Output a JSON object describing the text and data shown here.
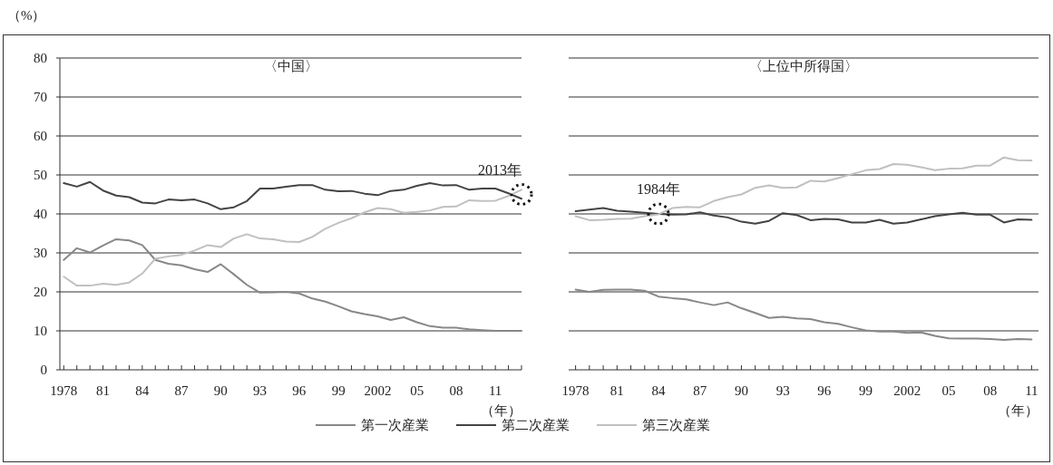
{
  "chart_data": [
    {
      "type": "line",
      "title": "〈中国〉",
      "ylabel": "（%）",
      "xlabel": "（年）",
      "x": [
        1978,
        1979,
        1980,
        1981,
        1982,
        1983,
        1984,
        1985,
        1986,
        1987,
        1988,
        1989,
        1990,
        1991,
        1992,
        1993,
        1994,
        1995,
        1996,
        1997,
        1998,
        1999,
        2000,
        2001,
        2002,
        2003,
        2004,
        2005,
        2006,
        2007,
        2008,
        2009,
        2010,
        2011,
        2012,
        2013
      ],
      "series": [
        {
          "name": "第一次産業",
          "color": "#888888",
          "values": [
            28.2,
            31.2,
            30.1,
            31.9,
            33.5,
            33.2,
            32.0,
            28.2,
            27.2,
            26.8,
            25.8,
            25.1,
            27.1,
            24.5,
            21.8,
            19.8,
            19.9,
            20.0,
            19.6,
            18.3,
            17.5,
            16.3,
            15.0,
            14.3,
            13.7,
            12.8,
            13.5,
            12.2,
            11.2,
            10.8,
            10.8,
            10.4,
            10.2,
            10.0,
            10.0,
            10.0
          ]
        },
        {
          "name": "第二次産業",
          "color": "#444444",
          "values": [
            47.9,
            47.0,
            48.2,
            46.0,
            44.7,
            44.3,
            42.9,
            42.7,
            43.7,
            43.5,
            43.7,
            42.7,
            41.2,
            41.7,
            43.3,
            46.5,
            46.5,
            47.0,
            47.4,
            47.4,
            46.2,
            45.8,
            45.9,
            45.2,
            44.8,
            45.9,
            46.2,
            47.2,
            47.9,
            47.3,
            47.4,
            46.2,
            46.5,
            46.5,
            45.3,
            43.9
          ]
        },
        {
          "name": "第三次産業",
          "color": "#c0c0c0",
          "values": [
            23.9,
            21.6,
            21.6,
            22.1,
            21.8,
            22.4,
            24.7,
            28.5,
            29.1,
            29.5,
            30.6,
            32.0,
            31.5,
            33.7,
            34.8,
            33.7,
            33.5,
            32.9,
            32.8,
            34.1,
            36.2,
            37.7,
            38.9,
            40.4,
            41.5,
            41.2,
            40.3,
            40.5,
            40.9,
            41.8,
            41.9,
            43.5,
            43.3,
            43.4,
            44.6,
            46.2
          ]
        }
      ],
      "xlim": [
        1977.7,
        2013
      ],
      "xticks": [
        {
          "value": 1978,
          "label": "1978"
        },
        {
          "value": 1979,
          "label": null
        },
        {
          "value": 1980,
          "label": null
        },
        {
          "value": 1981,
          "label": "81"
        },
        {
          "value": 1982,
          "label": null
        },
        {
          "value": 1983,
          "label": null
        },
        {
          "value": 1984,
          "label": "84"
        },
        {
          "value": 1985,
          "label": null
        },
        {
          "value": 1986,
          "label": null
        },
        {
          "value": 1987,
          "label": "87"
        },
        {
          "value": 1988,
          "label": null
        },
        {
          "value": 1989,
          "label": null
        },
        {
          "value": 1990,
          "label": "90"
        },
        {
          "value": 1991,
          "label": null
        },
        {
          "value": 1992,
          "label": null
        },
        {
          "value": 1993,
          "label": "93"
        },
        {
          "value": 1994,
          "label": null
        },
        {
          "value": 1995,
          "label": null
        },
        {
          "value": 1996,
          "label": "96"
        },
        {
          "value": 1997,
          "label": null
        },
        {
          "value": 1998,
          "label": null
        },
        {
          "value": 1999,
          "label": "99"
        },
        {
          "value": 2000,
          "label": null
        },
        {
          "value": 2001,
          "label": null
        },
        {
          "value": 2002,
          "label": "2002"
        },
        {
          "value": 2003,
          "label": null
        },
        {
          "value": 2004,
          "label": null
        },
        {
          "value": 2005,
          "label": "05"
        },
        {
          "value": 2006,
          "label": null
        },
        {
          "value": 2007,
          "label": null
        },
        {
          "value": 2008,
          "label": "08"
        },
        {
          "value": 2009,
          "label": null
        },
        {
          "value": 2010,
          "label": null
        },
        {
          "value": 2011,
          "label": "11"
        },
        {
          "value": 2012,
          "label": null
        },
        {
          "value": 2013,
          "label": null
        }
      ],
      "ylim": [
        0,
        80
      ],
      "yticks": [
        0,
        10,
        20,
        30,
        40,
        50,
        60,
        70,
        80
      ],
      "grid": "y",
      "legend": "bottom",
      "annotations": [
        {
          "text": "2013年",
          "x": 2013,
          "y": 45
        }
      ]
    },
    {
      "type": "line",
      "title": "〈上位中所得国〉",
      "xlabel": "（年）",
      "x": [
        1978,
        1979,
        1980,
        1981,
        1982,
        1983,
        1984,
        1985,
        1986,
        1987,
        1988,
        1989,
        1990,
        1991,
        1992,
        1993,
        1994,
        1995,
        1996,
        1997,
        1998,
        1999,
        2000,
        2001,
        2002,
        2003,
        2004,
        2005,
        2006,
        2007,
        2008,
        2009,
        2010,
        2011
      ],
      "series": [
        {
          "color": "#888888",
          "values": [
            20.6,
            20.0,
            20.5,
            20.6,
            20.6,
            20.3,
            18.8,
            18.4,
            18.1,
            17.3,
            16.6,
            17.3,
            15.8,
            14.6,
            13.3,
            13.6,
            13.2,
            13.0,
            12.2,
            11.8,
            10.9,
            10.1,
            9.8,
            9.8,
            9.5,
            9.6,
            8.7,
            8.1,
            8.0,
            8.0,
            7.9,
            7.7,
            7.9,
            7.8
          ]
        },
        {
          "color": "#444444",
          "values": [
            40.7,
            41.1,
            41.5,
            40.8,
            40.6,
            40.3,
            40.0,
            39.8,
            39.9,
            40.4,
            39.6,
            39.1,
            38.0,
            37.5,
            38.2,
            40.2,
            39.7,
            38.4,
            38.7,
            38.6,
            37.8,
            37.8,
            38.5,
            37.5,
            37.8,
            38.6,
            39.4,
            39.9,
            40.3,
            39.8,
            39.8,
            37.8,
            38.6,
            38.5
          ]
        },
        {
          "color": "#c0c0c0",
          "values": [
            39.4,
            38.4,
            38.5,
            38.7,
            38.8,
            39.4,
            39.9,
            41.5,
            41.8,
            41.7,
            43.3,
            44.3,
            45.0,
            46.7,
            47.3,
            46.7,
            46.8,
            48.5,
            48.3,
            49.2,
            50.2,
            51.2,
            51.5,
            52.8,
            52.6,
            52.0,
            51.2,
            51.6,
            51.7,
            52.4,
            52.4,
            54.5,
            53.8,
            53.7
          ]
        }
      ],
      "xlim": [
        1977.5,
        2011.5
      ],
      "xticks": [
        {
          "value": 1978,
          "label": "1978"
        },
        {
          "value": 1979,
          "label": null
        },
        {
          "value": 1980,
          "label": null
        },
        {
          "value": 1981,
          "label": "81"
        },
        {
          "value": 1982,
          "label": null
        },
        {
          "value": 1983,
          "label": null
        },
        {
          "value": 1984,
          "label": "84"
        },
        {
          "value": 1985,
          "label": null
        },
        {
          "value": 1986,
          "label": null
        },
        {
          "value": 1987,
          "label": "87"
        },
        {
          "value": 1988,
          "label": null
        },
        {
          "value": 1989,
          "label": null
        },
        {
          "value": 1990,
          "label": "90"
        },
        {
          "value": 1991,
          "label": null
        },
        {
          "value": 1992,
          "label": null
        },
        {
          "value": 1993,
          "label": "93"
        },
        {
          "value": 1994,
          "label": null
        },
        {
          "value": 1995,
          "label": null
        },
        {
          "value": 1996,
          "label": "96"
        },
        {
          "value": 1997,
          "label": null
        },
        {
          "value": 1998,
          "label": null
        },
        {
          "value": 1999,
          "label": "99"
        },
        {
          "value": 2000,
          "label": null
        },
        {
          "value": 2001,
          "label": null
        },
        {
          "value": 2002,
          "label": "2002"
        },
        {
          "value": 2003,
          "label": null
        },
        {
          "value": 2004,
          "label": null
        },
        {
          "value": 2005,
          "label": "05"
        },
        {
          "value": 2006,
          "label": null
        },
        {
          "value": 2007,
          "label": null
        },
        {
          "value": 2008,
          "label": "08"
        },
        {
          "value": 2009,
          "label": null
        },
        {
          "value": 2010,
          "label": null
        },
        {
          "value": 2011,
          "label": "11"
        }
      ],
      "ylim": [
        0,
        80
      ],
      "yticks": [
        0,
        10,
        20,
        30,
        40,
        50,
        60,
        70,
        80
      ],
      "grid": "y",
      "tick_labels": "x",
      "annotations": [
        {
          "text": "1984年",
          "x": 1984,
          "y": 40
        }
      ]
    }
  ]
}
